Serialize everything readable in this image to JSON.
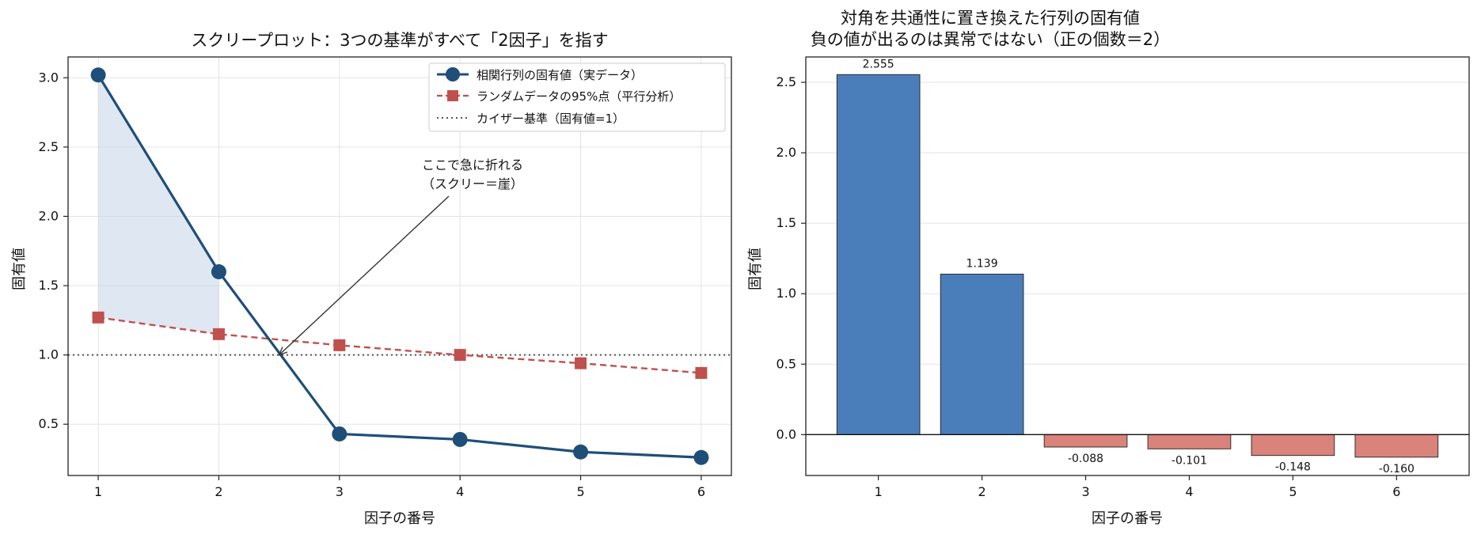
{
  "chart_data": [
    {
      "type": "line",
      "title": "スクリープロット：3つの基準がすべて「2因子」を指す",
      "xlabel": "因子の番号",
      "ylabel": "固有値",
      "x": [
        1,
        2,
        3,
        4,
        5,
        6
      ],
      "xlim": [
        0.75,
        6.25
      ],
      "ylim": [
        0.13,
        3.15
      ],
      "xticks": [
        "1",
        "2",
        "3",
        "4",
        "5",
        "6"
      ],
      "yticks": [
        "0.5",
        "1.0",
        "1.5",
        "2.0",
        "2.5",
        "3.0"
      ],
      "grid": true,
      "legend_position": "top-right",
      "series": [
        {
          "name": "相関行列の固有値（実データ）",
          "values": [
            3.02,
            1.6,
            0.43,
            0.39,
            0.3,
            0.26
          ],
          "color": "#1f4e79",
          "style": "solid",
          "marker": "circle"
        },
        {
          "name": "ランダムデータの95%点（平行分析）",
          "values": [
            1.27,
            1.15,
            1.07,
            1.0,
            0.94,
            0.87
          ],
          "color": "#c0504d",
          "style": "dashed",
          "marker": "square"
        }
      ],
      "reference_line": {
        "name": "カイザー基準（固有値=1）",
        "y": 1.0,
        "color": "#555555",
        "style": "dotted"
      },
      "shaded_region": {
        "x_from": 1,
        "x_to": 2,
        "between": "series",
        "color": "#c5d3e8"
      },
      "annotation": {
        "lines": [
          "ここで急に折れる",
          "（スクリー＝崖）"
        ],
        "target_x": 2.5,
        "target_y": 1.0
      }
    },
    {
      "type": "bar",
      "title": "対角を共通性に置き換えた行列の固有値",
      "subtitle": "負の値が出るのは異常ではない（正の個数＝2）",
      "xlabel": "因子の番号",
      "ylabel": "固有値",
      "categories": [
        "1",
        "2",
        "3",
        "4",
        "5",
        "6"
      ],
      "values": [
        2.555,
        1.139,
        -0.088,
        -0.101,
        -0.148,
        -0.16
      ],
      "value_labels": [
        "2.555",
        "1.139",
        "-0.088",
        "-0.101",
        "-0.148",
        "-0.160"
      ],
      "ylim": [
        -0.29,
        2.68
      ],
      "yticks": [
        "0.0",
        "0.5",
        "1.0",
        "1.5",
        "2.0",
        "2.5"
      ],
      "grid": true,
      "colors": {
        "positive": "#4a7ebb",
        "negative": "#d9837a"
      }
    }
  ]
}
